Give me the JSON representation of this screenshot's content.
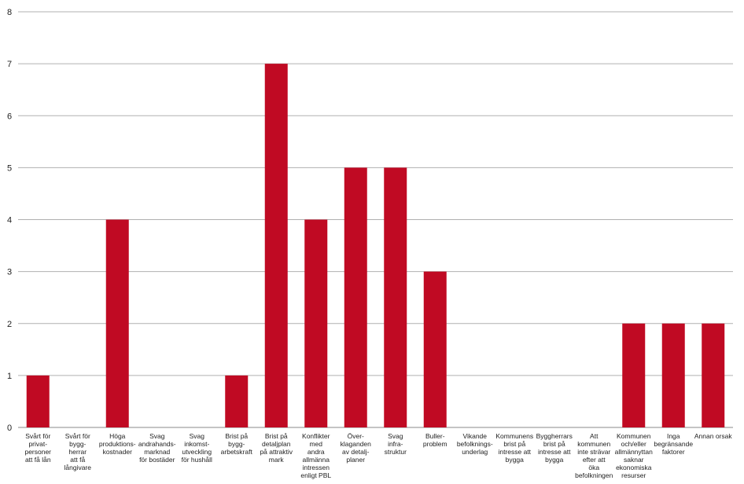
{
  "chart_data": {
    "type": "bar",
    "title": "",
    "xlabel": "",
    "ylabel": "",
    "ylim": [
      0,
      8
    ],
    "yticks": [
      0,
      1,
      2,
      3,
      4,
      5,
      6,
      7,
      8
    ],
    "grid": true,
    "legend": "none",
    "bar_color": "#c00a23",
    "grid_color": "#b0b0b0",
    "categories": [
      [
        "Svårt för",
        "privat-",
        "personer",
        "att få lån"
      ],
      [
        "Svårt för",
        "bygg-",
        "herrar",
        "att få",
        "långivare"
      ],
      [
        "Höga",
        "produktions-",
        "kostnader"
      ],
      [
        "Svag",
        "andrahands-",
        "marknad",
        "för bostäder"
      ],
      [
        "Svag",
        "inkomst-",
        "utveckling",
        "för hushåll"
      ],
      [
        "Brist på",
        "bygg-",
        "arbetskraft"
      ],
      [
        "Brist på",
        "detaljplan",
        "på attraktiv",
        "mark"
      ],
      [
        "Konflikter",
        "med",
        "andra",
        "allmänna",
        "intressen",
        "enligt PBL"
      ],
      [
        "Över-",
        "klaganden",
        "av detalj-",
        "planer"
      ],
      [
        "Svag",
        "infra-",
        "struktur"
      ],
      [
        "Buller-",
        "problem"
      ],
      [
        "Vikande",
        "befolknings-",
        "underlag"
      ],
      [
        "Kommunens",
        "brist på",
        "intresse att",
        "bygga"
      ],
      [
        "Byggherrars",
        "brist på",
        "intresse att",
        "bygga"
      ],
      [
        "Att",
        "kommunen",
        "inte strävar",
        "efter att",
        "öka",
        "befolkningen"
      ],
      [
        "Kommunen",
        "och/eller",
        "allmännyttan",
        "saknar",
        "ekonomiska",
        "resurser"
      ],
      [
        "Inga",
        "begränsande",
        "faktorer"
      ],
      [
        "Annan orsak"
      ]
    ],
    "values": [
      1,
      0,
      4,
      0,
      0,
      1,
      7,
      4,
      5,
      5,
      3,
      0,
      0,
      0,
      0,
      2,
      2,
      2
    ]
  }
}
